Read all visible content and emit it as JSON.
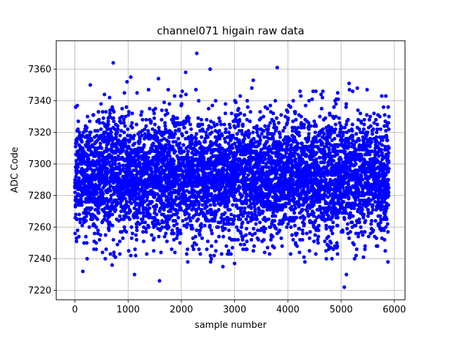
{
  "chart_data": {
    "type": "scatter",
    "title": "channel071 higain raw data",
    "xlabel": "sample number",
    "ylabel": "ADC Code",
    "xlim": [
      -350,
      6200
    ],
    "ylim": [
      7214,
      7378
    ],
    "xticks": [
      0,
      1000,
      2000,
      3000,
      4000,
      5000,
      6000
    ],
    "yticks": [
      7220,
      7240,
      7260,
      7280,
      7300,
      7320,
      7340,
      7360
    ],
    "grid": true,
    "marker_color": "#0000ff",
    "n_points": 5900,
    "x_range": [
      0,
      5899
    ],
    "y_center": 7292,
    "y_std": 19,
    "series": [
      {
        "outliers": [
          {
            "x": 720,
            "y": 7364
          },
          {
            "x": 2290,
            "y": 7370
          },
          {
            "x": 2540,
            "y": 7360
          },
          {
            "x": 3800,
            "y": 7361
          },
          {
            "x": 3350,
            "y": 7353
          },
          {
            "x": 1050,
            "y": 7355
          },
          {
            "x": 1570,
            "y": 7354
          },
          {
            "x": 2080,
            "y": 7358
          },
          {
            "x": 5150,
            "y": 7351
          },
          {
            "x": 5840,
            "y": 7343
          },
          {
            "x": 290,
            "y": 7350
          },
          {
            "x": 980,
            "y": 7352
          },
          {
            "x": 150,
            "y": 7232
          },
          {
            "x": 1120,
            "y": 7230
          },
          {
            "x": 1590,
            "y": 7226
          },
          {
            "x": 5060,
            "y": 7222
          },
          {
            "x": 5100,
            "y": 7230
          },
          {
            "x": 2120,
            "y": 7238
          },
          {
            "x": 2780,
            "y": 7235
          },
          {
            "x": 230,
            "y": 7240
          },
          {
            "x": 700,
            "y": 7236
          },
          {
            "x": 3000,
            "y": 7237
          },
          {
            "x": 4320,
            "y": 7238
          },
          {
            "x": 5880,
            "y": 7238
          },
          {
            "x": 5420,
            "y": 7241
          },
          {
            "x": 2550,
            "y": 7238
          }
        ]
      }
    ]
  }
}
